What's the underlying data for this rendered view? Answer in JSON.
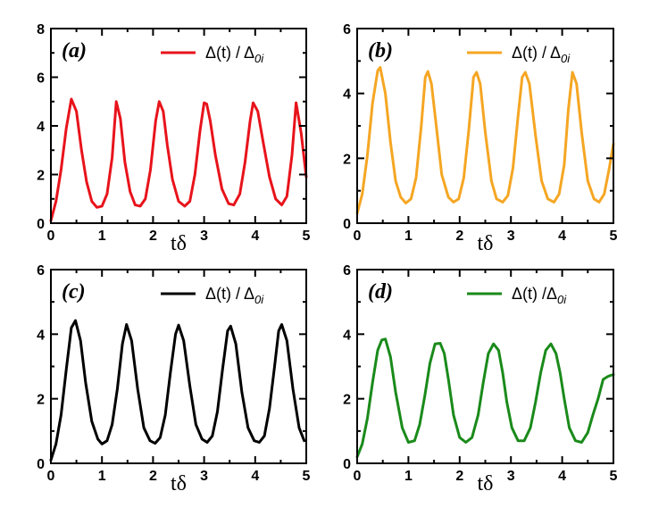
{
  "chart_data": [
    {
      "type": "line",
      "panel_label": "(a)",
      "xlabel": "tδ",
      "ylabel": "",
      "xlim": [
        0,
        5
      ],
      "ylim": [
        0,
        8
      ],
      "x_ticks": [
        "0",
        "1",
        "2",
        "3",
        "4",
        "5"
      ],
      "y_ticks": [
        "0",
        "2",
        "4",
        "6",
        "8"
      ],
      "legend": {
        "placement": "top-right",
        "text": "Δ(t) / Δ",
        "subscript": "0i"
      },
      "series": [
        {
          "color": "#e8131b",
          "x": [
            0.0,
            0.1,
            0.2,
            0.3,
            0.4,
            0.5,
            0.6,
            0.7,
            0.8,
            0.9,
            1.0,
            1.1,
            1.2,
            1.28,
            1.36,
            1.45,
            1.55,
            1.65,
            1.75,
            1.85,
            1.95,
            2.05,
            2.12,
            2.2,
            2.28,
            2.38,
            2.5,
            2.62,
            2.72,
            2.82,
            2.92,
            3.0,
            3.05,
            3.12,
            3.22,
            3.35,
            3.48,
            3.58,
            3.7,
            3.8,
            3.9,
            3.96,
            4.05,
            4.15,
            4.28,
            4.4,
            4.52,
            4.62,
            4.72,
            4.8,
            4.9,
            5.0
          ],
          "y": [
            0.1,
            0.9,
            2.2,
            3.9,
            5.1,
            4.6,
            3.0,
            1.7,
            0.9,
            0.65,
            0.7,
            1.2,
            2.7,
            5.0,
            4.3,
            2.5,
            1.3,
            0.75,
            0.7,
            1.0,
            2.2,
            4.2,
            5.0,
            4.6,
            3.2,
            1.8,
            0.9,
            0.7,
            0.9,
            2.0,
            3.8,
            4.95,
            4.9,
            4.2,
            2.8,
            1.4,
            0.8,
            0.75,
            1.2,
            2.5,
            4.2,
            4.95,
            4.6,
            3.4,
            1.9,
            1.0,
            0.75,
            1.1,
            2.8,
            4.95,
            3.7,
            1.9
          ]
        }
      ]
    },
    {
      "type": "line",
      "panel_label": "(b)",
      "xlabel": "tδ",
      "ylabel": "",
      "xlim": [
        0,
        5
      ],
      "ylim": [
        0,
        6
      ],
      "x_ticks": [
        "0",
        "1",
        "2",
        "3",
        "4",
        "5"
      ],
      "y_ticks": [
        "0",
        "2",
        "4",
        "6"
      ],
      "legend": {
        "placement": "top-right",
        "text": "Δ(t) / Δ",
        "subscript": "0i"
      },
      "series": [
        {
          "color": "#f5a623",
          "x": [
            0.0,
            0.1,
            0.2,
            0.3,
            0.4,
            0.45,
            0.55,
            0.65,
            0.75,
            0.85,
            0.95,
            1.05,
            1.15,
            1.25,
            1.33,
            1.38,
            1.45,
            1.55,
            1.65,
            1.78,
            1.88,
            1.98,
            2.08,
            2.18,
            2.27,
            2.33,
            2.4,
            2.5,
            2.62,
            2.72,
            2.84,
            2.94,
            3.04,
            3.14,
            3.22,
            3.28,
            3.36,
            3.48,
            3.6,
            3.72,
            3.84,
            3.94,
            4.04,
            4.12,
            4.2,
            4.28,
            4.38,
            4.5,
            4.62,
            4.72,
            4.82,
            4.92,
            5.0
          ],
          "y": [
            0.3,
            0.9,
            2.1,
            3.7,
            4.7,
            4.8,
            4.0,
            2.5,
            1.3,
            0.8,
            0.62,
            0.75,
            1.4,
            3.0,
            4.5,
            4.68,
            4.3,
            2.9,
            1.5,
            0.8,
            0.65,
            0.75,
            1.4,
            2.9,
            4.5,
            4.65,
            4.3,
            2.8,
            1.3,
            0.75,
            0.65,
            0.85,
            1.7,
            3.3,
            4.5,
            4.65,
            4.3,
            2.7,
            1.3,
            0.75,
            0.65,
            0.9,
            1.8,
            3.5,
            4.65,
            4.3,
            2.8,
            1.3,
            0.75,
            0.65,
            0.9,
            1.7,
            2.45
          ]
        }
      ]
    },
    {
      "type": "line",
      "panel_label": "(c)",
      "xlabel": "tδ",
      "ylabel": "",
      "xlim": [
        0,
        5
      ],
      "ylim": [
        0,
        6
      ],
      "x_ticks": [
        "0",
        "1",
        "2",
        "3",
        "4",
        "5"
      ],
      "y_ticks": [
        "0",
        "2",
        "4",
        "6"
      ],
      "legend": {
        "placement": "top-right",
        "text": "Δ(t) / Δ",
        "subscript": "0i"
      },
      "series": [
        {
          "color": "#000000",
          "x": [
            0.0,
            0.1,
            0.2,
            0.3,
            0.4,
            0.48,
            0.58,
            0.68,
            0.8,
            0.92,
            1.0,
            1.1,
            1.2,
            1.3,
            1.4,
            1.48,
            1.58,
            1.7,
            1.82,
            1.94,
            2.04,
            2.14,
            2.24,
            2.34,
            2.44,
            2.5,
            2.6,
            2.72,
            2.84,
            2.96,
            3.06,
            3.16,
            3.26,
            3.36,
            3.46,
            3.52,
            3.62,
            3.74,
            3.86,
            3.98,
            4.08,
            4.18,
            4.28,
            4.38,
            4.46,
            4.52,
            4.62,
            4.74,
            4.86,
            4.96
          ],
          "y": [
            0.1,
            0.6,
            1.5,
            2.9,
            4.2,
            4.42,
            3.8,
            2.5,
            1.3,
            0.75,
            0.6,
            0.7,
            1.2,
            2.3,
            3.7,
            4.3,
            3.8,
            2.3,
            1.1,
            0.7,
            0.62,
            0.8,
            1.5,
            2.8,
            4.0,
            4.28,
            3.8,
            2.4,
            1.2,
            0.75,
            0.65,
            0.85,
            1.6,
            2.9,
            4.1,
            4.25,
            3.7,
            2.2,
            1.1,
            0.7,
            0.65,
            0.85,
            1.7,
            3.0,
            4.1,
            4.3,
            3.8,
            2.3,
            1.1,
            0.7
          ]
        }
      ]
    },
    {
      "type": "line",
      "panel_label": "(d)",
      "xlabel": "tδ",
      "ylabel": "",
      "xlim": [
        0,
        5
      ],
      "ylim": [
        0,
        6
      ],
      "x_ticks": [
        "0",
        "1",
        "2",
        "3",
        "4",
        "5"
      ],
      "y_ticks": [
        "0",
        "2",
        "4",
        "6"
      ],
      "legend": {
        "placement": "top-right",
        "text": "Δ(t) /Δ",
        "subscript": "0i"
      },
      "series": [
        {
          "color": "#1a8a1a",
          "x": [
            0.0,
            0.1,
            0.2,
            0.3,
            0.4,
            0.48,
            0.55,
            0.65,
            0.75,
            0.88,
            1.0,
            1.12,
            1.22,
            1.32,
            1.42,
            1.52,
            1.62,
            1.7,
            1.78,
            1.88,
            2.0,
            2.12,
            2.24,
            2.36,
            2.46,
            2.56,
            2.66,
            2.76,
            2.84,
            2.92,
            3.02,
            3.14,
            3.26,
            3.38,
            3.48,
            3.58,
            3.68,
            3.78,
            3.88,
            3.96,
            4.04,
            4.14,
            4.26,
            4.38,
            4.5,
            4.6,
            4.7,
            4.8,
            4.9,
            5.0
          ],
          "y": [
            0.2,
            0.6,
            1.4,
            2.5,
            3.5,
            3.82,
            3.85,
            3.3,
            2.2,
            1.1,
            0.65,
            0.7,
            1.2,
            2.1,
            3.1,
            3.7,
            3.72,
            3.4,
            2.6,
            1.5,
            0.8,
            0.65,
            0.8,
            1.5,
            2.5,
            3.4,
            3.7,
            3.5,
            2.8,
            1.9,
            1.1,
            0.7,
            0.7,
            1.1,
            1.9,
            2.8,
            3.5,
            3.7,
            3.4,
            2.8,
            2.0,
            1.1,
            0.7,
            0.65,
            0.95,
            1.5,
            2.0,
            2.6,
            2.7,
            2.75
          ]
        }
      ]
    }
  ]
}
